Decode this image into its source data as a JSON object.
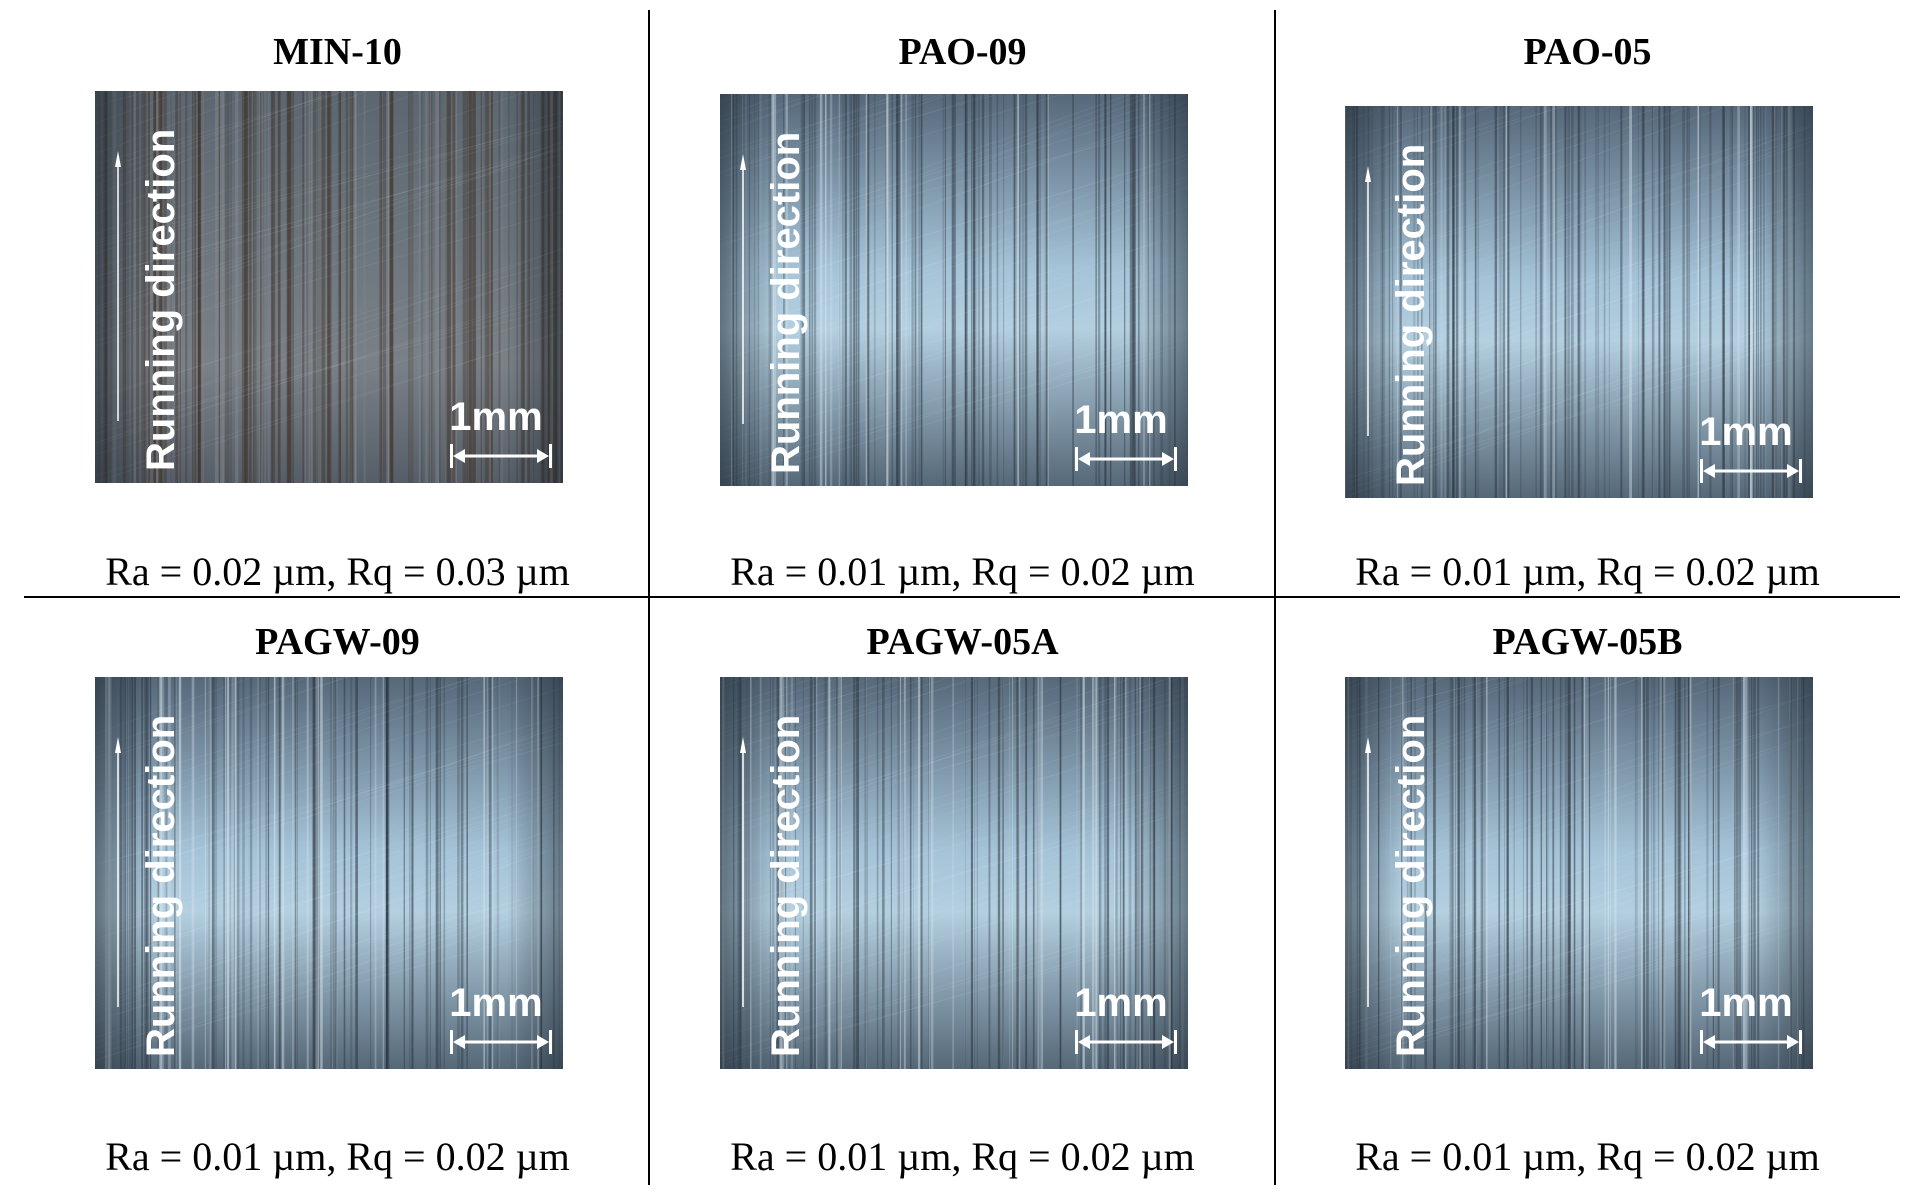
{
  "figure": {
    "panels": [
      {
        "id": "min10",
        "title": "MIN-10",
        "caption": "Ra = 0.02 µm, Rq = 0.03 µm",
        "direction_label": "Running direction",
        "scale_label": "1mm",
        "tone": "brown"
      },
      {
        "id": "pao09",
        "title": "PAO-09",
        "caption": "Ra = 0.01 µm, Rq = 0.02 µm",
        "direction_label": "Running direction",
        "scale_label": "1mm",
        "tone": "blue"
      },
      {
        "id": "pao05",
        "title": "PAO-05",
        "caption": "Ra = 0.01 µm, Rq = 0.02 µm",
        "direction_label": "Running direction",
        "scale_label": "1mm",
        "tone": "blue"
      },
      {
        "id": "pagw09",
        "title": "PAGW-09",
        "caption": "Ra = 0.01 µm, Rq = 0.02 µm",
        "direction_label": "Running direction",
        "scale_label": "1mm",
        "tone": "blue"
      },
      {
        "id": "pagw05a",
        "title": "PAGW-05A",
        "caption": "Ra = 0.01 µm, Rq = 0.02 µm",
        "direction_label": "Running direction",
        "scale_label": "1mm",
        "tone": "blue"
      },
      {
        "id": "pagw05b",
        "title": "PAGW-05B",
        "caption": "Ra = 0.01 µm, Rq = 0.02 µm",
        "direction_label": "Running direction",
        "scale_label": "1mm",
        "tone": "blue"
      }
    ]
  }
}
